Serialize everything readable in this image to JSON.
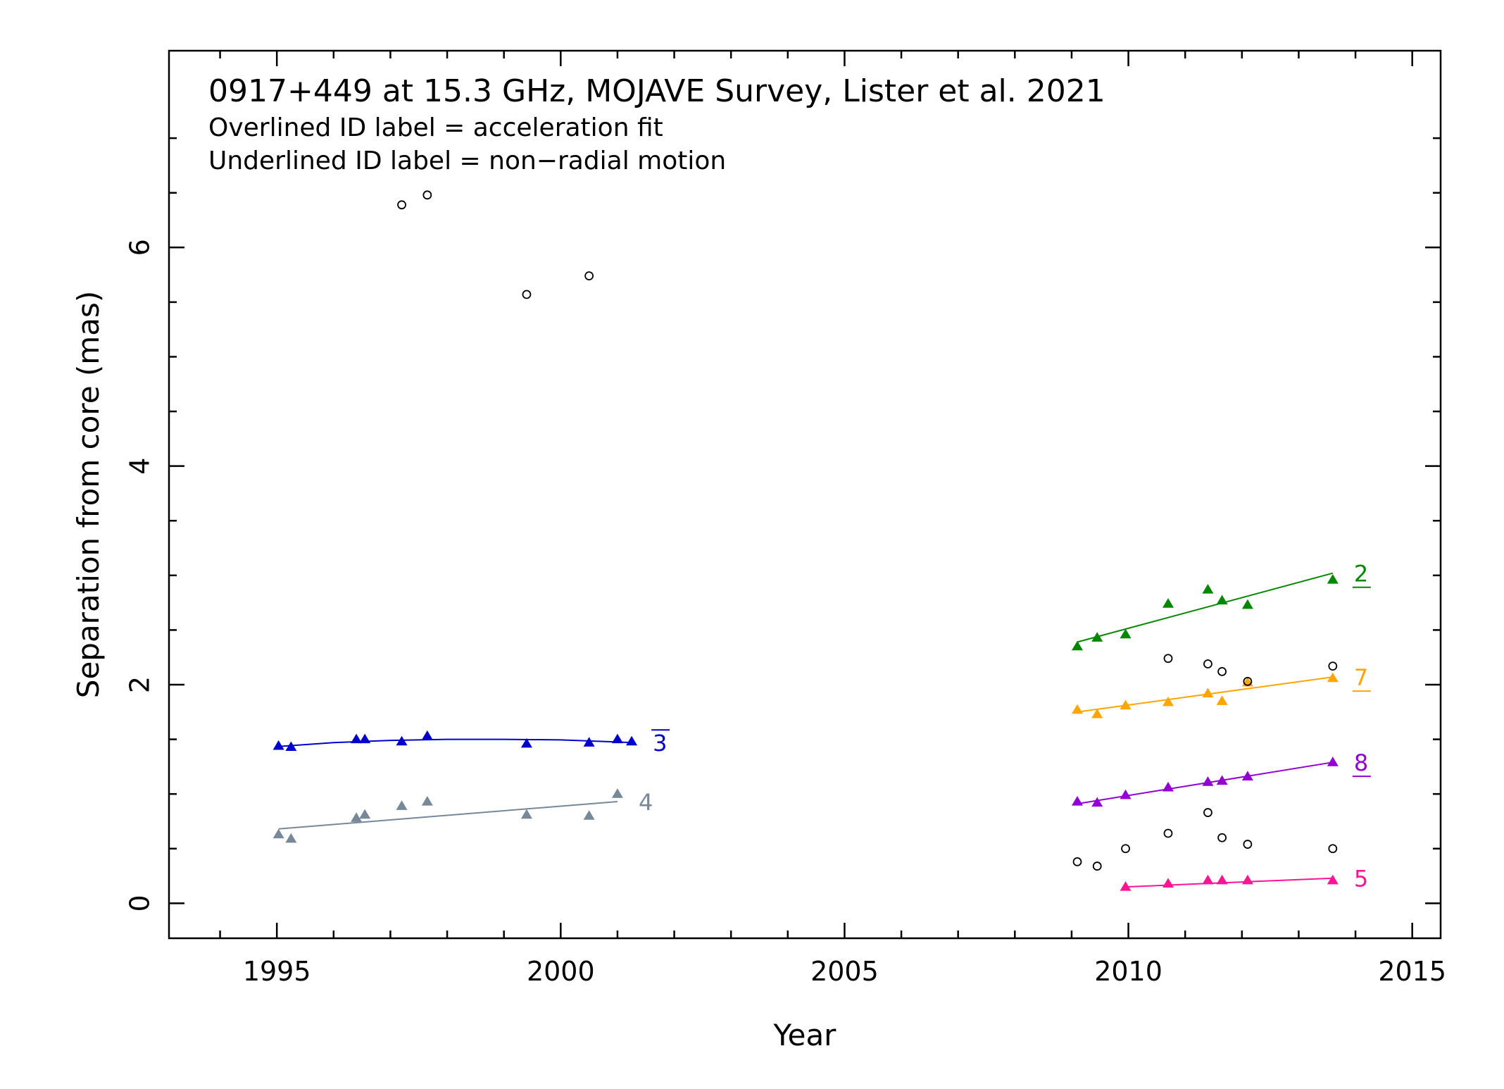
{
  "chart_data": {
    "type": "scatter",
    "title": "0917+449 at 15.3 GHz, MOJAVE Survey, Lister et al. 2021",
    "subtitle_lines": [
      "Overlined ID label = acceleration fit",
      "Underlined ID label = non−radial motion"
    ],
    "xlabel": "Year",
    "ylabel": "Separation from core (mas)",
    "xlim": [
      1993.1,
      2015.5
    ],
    "ylim": [
      -0.32,
      7.8
    ],
    "x_ticks": [
      1995,
      2000,
      2005,
      2010,
      2015
    ],
    "y_ticks": [
      0,
      2,
      4,
      6
    ],
    "grid": false,
    "series": [
      {
        "name": "3",
        "color": "#0000cc",
        "label_style": "overline",
        "marker": "triangle",
        "points": [
          [
            1995.03,
            1.44
          ],
          [
            1995.25,
            1.43
          ],
          [
            1996.4,
            1.5
          ],
          [
            1996.55,
            1.5
          ],
          [
            1997.2,
            1.48
          ],
          [
            1997.65,
            1.53
          ],
          [
            1999.4,
            1.46
          ],
          [
            2000.5,
            1.47
          ],
          [
            2001.0,
            1.5
          ],
          [
            2001.25,
            1.48
          ]
        ],
        "fit": "quadratic",
        "fit_points": [
          [
            1995.03,
            1.435
          ],
          [
            1996.0,
            1.47
          ],
          [
            1997.0,
            1.49
          ],
          [
            1998.0,
            1.5
          ],
          [
            1999.0,
            1.5
          ],
          [
            2000.0,
            1.495
          ],
          [
            2001.25,
            1.47
          ]
        ]
      },
      {
        "name": "4",
        "color": "#778899",
        "label_style": "plain",
        "marker": "triangle",
        "points": [
          [
            1995.03,
            0.63
          ],
          [
            1995.25,
            0.59
          ],
          [
            1996.4,
            0.78
          ],
          [
            1996.55,
            0.81
          ],
          [
            1997.2,
            0.89
          ],
          [
            1997.65,
            0.93
          ],
          [
            1999.4,
            0.81
          ],
          [
            2000.5,
            0.8
          ],
          [
            2001.0,
            1.0
          ]
        ],
        "fit": "linear",
        "fit_points": [
          [
            1995.03,
            0.68
          ],
          [
            2001.0,
            0.93
          ]
        ]
      },
      {
        "name": "2",
        "color": "#008800",
        "label_style": "underline",
        "marker": "triangle",
        "points": [
          [
            2009.1,
            2.35
          ],
          [
            2009.45,
            2.43
          ],
          [
            2009.95,
            2.46
          ],
          [
            2010.7,
            2.74
          ],
          [
            2011.4,
            2.87
          ],
          [
            2011.65,
            2.77
          ],
          [
            2012.1,
            2.73
          ],
          [
            2013.6,
            2.96
          ]
        ],
        "fit": "linear",
        "fit_points": [
          [
            2009.1,
            2.39
          ],
          [
            2013.6,
            3.02
          ]
        ]
      },
      {
        "name": "7",
        "color": "#ffa500",
        "label_style": "underline",
        "marker": "triangle",
        "points": [
          [
            2009.1,
            1.77
          ],
          [
            2009.45,
            1.73
          ],
          [
            2009.95,
            1.81
          ],
          [
            2010.7,
            1.84
          ],
          [
            2011.4,
            1.92
          ],
          [
            2011.65,
            1.85
          ],
          [
            2012.1,
            2.02
          ],
          [
            2013.6,
            2.06
          ]
        ],
        "fit": "linear",
        "fit_points": [
          [
            2009.1,
            1.75
          ],
          [
            2013.6,
            2.07
          ]
        ]
      },
      {
        "name": "8",
        "color": "#9400d3",
        "label_style": "underline",
        "marker": "triangle",
        "points": [
          [
            2009.1,
            0.93
          ],
          [
            2009.45,
            0.92
          ],
          [
            2009.95,
            0.99
          ],
          [
            2010.7,
            1.06
          ],
          [
            2011.4,
            1.11
          ],
          [
            2011.65,
            1.12
          ],
          [
            2012.1,
            1.16
          ],
          [
            2013.6,
            1.29
          ]
        ],
        "fit": "linear",
        "fit_points": [
          [
            2009.1,
            0.91
          ],
          [
            2013.6,
            1.29
          ]
        ]
      },
      {
        "name": "5",
        "color": "#ff1493",
        "label_style": "plain",
        "marker": "triangle",
        "points": [
          [
            2009.95,
            0.15
          ],
          [
            2010.7,
            0.18
          ],
          [
            2011.4,
            0.21
          ],
          [
            2011.65,
            0.21
          ],
          [
            2012.1,
            0.21
          ],
          [
            2013.6,
            0.21
          ]
        ],
        "fit": "linear",
        "fit_points": [
          [
            2009.95,
            0.15
          ],
          [
            2013.6,
            0.23
          ]
        ]
      },
      {
        "name": "",
        "color": "#000000",
        "marker": "open-circle",
        "points": [
          [
            1997.2,
            6.39
          ],
          [
            1997.65,
            6.48
          ],
          [
            1999.4,
            5.57
          ],
          [
            2000.5,
            5.74
          ],
          [
            2009.1,
            0.38
          ],
          [
            2009.45,
            0.34
          ],
          [
            2009.95,
            0.5
          ],
          [
            2010.7,
            2.24
          ],
          [
            2010.7,
            0.64
          ],
          [
            2011.4,
            2.19
          ],
          [
            2011.4,
            0.83
          ],
          [
            2011.65,
            2.12
          ],
          [
            2011.65,
            0.6
          ],
          [
            2012.1,
            2.03
          ],
          [
            2012.1,
            0.54
          ],
          [
            2013.6,
            2.17
          ],
          [
            2013.6,
            0.5
          ]
        ]
      }
    ]
  }
}
